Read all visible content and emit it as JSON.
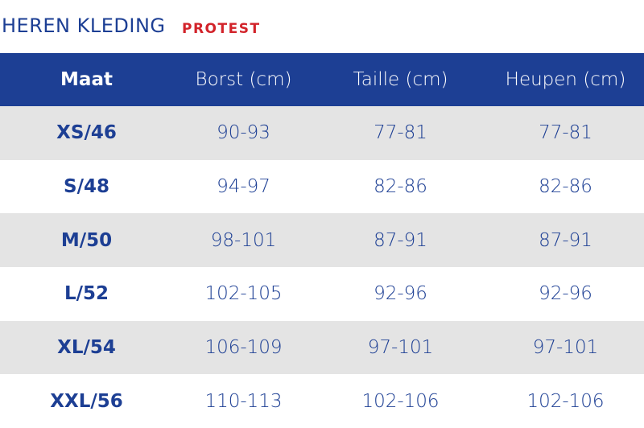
{
  "header": {
    "title": "HEREN KLEDING",
    "brand": "PROTEST"
  },
  "table": {
    "columns": [
      "Maat",
      "Borst (cm)",
      "Taille (cm)",
      "Heupen (cm)"
    ],
    "rows": [
      [
        "XS/46",
        "90-93",
        "77-81",
        "77-81"
      ],
      [
        "S/48",
        "94-97",
        "82-86",
        "82-86"
      ],
      [
        "M/50",
        "98-101",
        "87-91",
        "87-91"
      ],
      [
        "L/52",
        "102-105",
        "92-96",
        "92-96"
      ],
      [
        "XL/54",
        "106-109",
        "97-101",
        "97-101"
      ],
      [
        "XXL/56",
        "110-113",
        "102-106",
        "102-106"
      ]
    ]
  },
  "colors": {
    "header_blue": "#1d3f94",
    "brand_red": "#d2232a",
    "row_stripe_gray": "#e4e4e4",
    "text_blue": "#1d3f94"
  }
}
